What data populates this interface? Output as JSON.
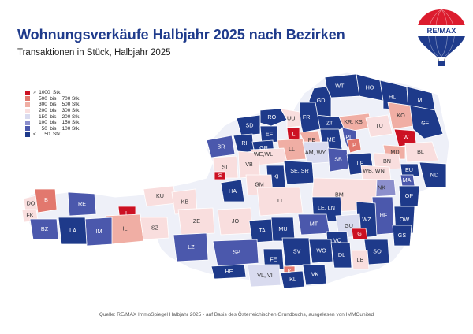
{
  "header": {
    "title": "Wohnungsverkäufe Halbjahr 2025 nach Bezirken",
    "subtitle": "Transaktionen in Stück, Halbjahr 2025"
  },
  "logo": {
    "text": "RE/MAX"
  },
  "legend": [
    {
      "label": ">  1000  Stk.",
      "color": "#cc1123"
    },
    {
      "label": "    500  bis    700 Stk.",
      "color": "#e2786e"
    },
    {
      "label": "    300  bis    500 Stk.",
      "color": "#f0aea4"
    },
    {
      "label": "    200  bis    300 Stk.",
      "color": "#f9dede"
    },
    {
      "label": "    150  bis    200 Stk.",
      "color": "#d9dbef"
    },
    {
      "label": "    100  bis    150 Stk.",
      "color": "#8c8fcc"
    },
    {
      "label": "      50  bis    100 Stk.",
      "color": "#4b58ac"
    },
    {
      "label": "<      50  Stk.",
      "color": "#1e3a8a"
    }
  ],
  "districts": [
    {
      "code": "WT",
      "cls": 0
    },
    {
      "code": "HO",
      "cls": 0
    },
    {
      "code": "GD",
      "cls": 0
    },
    {
      "code": "HL",
      "cls": 0
    },
    {
      "code": "MI",
      "cls": 0
    },
    {
      "code": "ZT",
      "cls": 0
    },
    {
      "code": "KR, KS",
      "cls": 5
    },
    {
      "code": "RO",
      "cls": 0
    },
    {
      "code": "UU",
      "cls": 4
    },
    {
      "code": "FR",
      "cls": 0
    },
    {
      "code": "SD",
      "cls": 0
    },
    {
      "code": "EF",
      "cls": 0
    },
    {
      "code": "L",
      "cls": 7
    },
    {
      "code": "PE",
      "cls": 5
    },
    {
      "code": "ME",
      "cls": 0
    },
    {
      "code": "PL",
      "cls": 1
    },
    {
      "code": "P",
      "cls": 6
    },
    {
      "code": "TU",
      "cls": 4
    },
    {
      "code": "KO",
      "cls": 5
    },
    {
      "code": "GF",
      "cls": 0
    },
    {
      "code": "W",
      "cls": 7
    },
    {
      "code": "RI",
      "cls": 0
    },
    {
      "code": "GR",
      "cls": 0
    },
    {
      "code": "LL",
      "cls": 5
    },
    {
      "code": "AM, WY",
      "cls": 3
    },
    {
      "code": "BR",
      "cls": 1
    },
    {
      "code": "WE,WL",
      "cls": 4
    },
    {
      "code": "MD",
      "cls": 5
    },
    {
      "code": "BL",
      "cls": 4
    },
    {
      "code": "SB",
      "cls": 1
    },
    {
      "code": "LF",
      "cls": 0
    },
    {
      "code": "BN",
      "cls": 4
    },
    {
      "code": "ND",
      "cls": 0
    },
    {
      "code": "SL",
      "cls": 4
    },
    {
      "code": "VB",
      "cls": 4
    },
    {
      "code": "S",
      "cls": 7
    },
    {
      "code": "SE, SR",
      "cls": 0
    },
    {
      "code": "KI",
      "cls": 0
    },
    {
      "code": "WB, WN",
      "cls": 4
    },
    {
      "code": "EU",
      "cls": 0
    },
    {
      "code": "MA",
      "cls": 1
    },
    {
      "code": "GM",
      "cls": 4
    },
    {
      "code": "NK",
      "cls": 2
    },
    {
      "code": "HA",
      "cls": 0
    },
    {
      "code": "BM",
      "cls": 4
    },
    {
      "code": "OP",
      "cls": 0
    },
    {
      "code": "DO",
      "cls": 4
    },
    {
      "code": "B",
      "cls": 6
    },
    {
      "code": "RE",
      "cls": 1
    },
    {
      "code": "KU",
      "cls": 4
    },
    {
      "code": "KB",
      "cls": 4
    },
    {
      "code": "LI",
      "cls": 4
    },
    {
      "code": "LE, LN",
      "cls": 0
    },
    {
      "code": "HF",
      "cls": 1
    },
    {
      "code": "FK",
      "cls": 4
    },
    {
      "code": "I",
      "cls": 7
    },
    {
      "code": "ZE",
      "cls": 4
    },
    {
      "code": "JO",
      "cls": 4
    },
    {
      "code": "MT",
      "cls": 1
    },
    {
      "code": "WZ",
      "cls": 0
    },
    {
      "code": "OW",
      "cls": 0
    },
    {
      "code": "BZ",
      "cls": 1
    },
    {
      "code": "IL",
      "cls": 5
    },
    {
      "code": "SZ",
      "cls": 4
    },
    {
      "code": "IM",
      "cls": 1
    },
    {
      "code": "LA",
      "cls": 0
    },
    {
      "code": "TA",
      "cls": 0
    },
    {
      "code": "MU",
      "cls": 0
    },
    {
      "code": "GU",
      "cls": 3
    },
    {
      "code": "G",
      "cls": 7
    },
    {
      "code": "GS",
      "cls": 0
    },
    {
      "code": "VO",
      "cls": 0
    },
    {
      "code": "LZ",
      "cls": 1
    },
    {
      "code": "SV",
      "cls": 0
    },
    {
      "code": "WO",
      "cls": 0
    },
    {
      "code": "DL",
      "cls": 0
    },
    {
      "code": "SO",
      "cls": 0
    },
    {
      "code": "SP",
      "cls": 1
    },
    {
      "code": "FE",
      "cls": 0
    },
    {
      "code": "LB",
      "cls": 4
    },
    {
      "code": "HE",
      "cls": 0
    },
    {
      "code": "VL, VI",
      "cls": 3
    },
    {
      "code": "K",
      "cls": 6
    },
    {
      "code": "KL",
      "cls": 0
    },
    {
      "code": "VK",
      "cls": 0
    }
  ],
  "source": "Quelle: RE/MAX ImmoSpiegel Halbjahr 2025 - auf Basis des Österreichischen Grundbuchs, ausgelesen von IMMOunited"
}
